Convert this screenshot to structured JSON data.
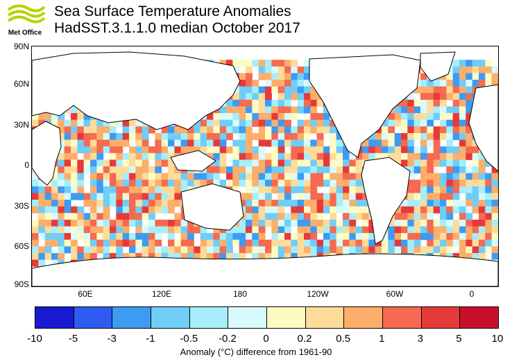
{
  "logo": {
    "text": "Met Office"
  },
  "title": {
    "line1": "Sea Surface Temperature Anomalies",
    "line2": "HadSST.3.1.1.0 median October 2017"
  },
  "map": {
    "lat_labels": [
      "90N",
      "60N",
      "30N",
      "0",
      "30S",
      "60S",
      "90S"
    ],
    "lon_labels": [
      "60E",
      "120E",
      "180",
      "120W",
      "60W",
      "0"
    ]
  },
  "colorbar": {
    "labels": [
      "-10",
      "-5",
      "-3",
      "-1",
      "-0.5",
      "-0.2",
      "0",
      "0.2",
      "0.5",
      "1",
      "3",
      "5",
      "10"
    ],
    "colors": [
      "#1a1ad0",
      "#2f5cf0",
      "#3d9bf2",
      "#6fcdf8",
      "#a6eefa",
      "#d8fafc",
      "#fdfbc4",
      "#fddc9a",
      "#fcae6a",
      "#f56a50",
      "#e63a3a",
      "#c8102a"
    ]
  },
  "caption": "Anomaly (°C) difference from 1961-90"
}
